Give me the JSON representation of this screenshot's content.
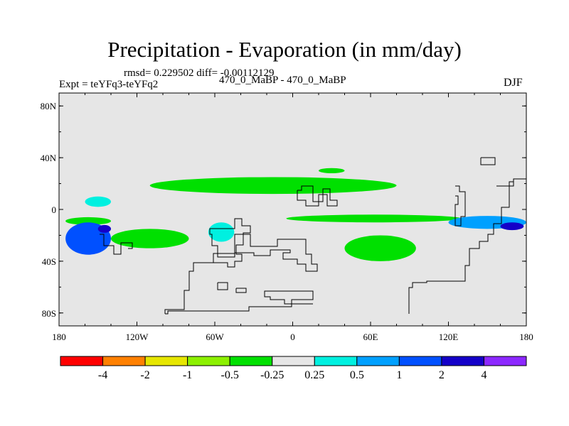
{
  "chart_data": {
    "type": "heatmap",
    "title": "Precipitation - Evaporation (in mm/day)",
    "stats_text": "rmsd= 0.229502 diff= -0.00112129",
    "left_label": "Expt = teYFq3-teYFq2",
    "center_label": "470_0_MaBP - 470_0_MaBP",
    "right_label": "DJF",
    "xlim": [
      -180,
      180
    ],
    "ylim": [
      -90,
      90
    ],
    "x_ticks": [
      {
        "value": -180,
        "label": "180"
      },
      {
        "value": -120,
        "label": "120W"
      },
      {
        "value": -60,
        "label": "60W"
      },
      {
        "value": 0,
        "label": "0"
      },
      {
        "value": 60,
        "label": "60E"
      },
      {
        "value": 120,
        "label": "120E"
      },
      {
        "value": 180,
        "label": "180"
      }
    ],
    "y_ticks": [
      {
        "value": 80,
        "label": "80N"
      },
      {
        "value": 40,
        "label": "40N"
      },
      {
        "value": 0,
        "label": "0"
      },
      {
        "value": -40,
        "label": "40S"
      },
      {
        "value": -80,
        "label": "80S"
      }
    ],
    "colorbar": {
      "colors": [
        "#ff0000",
        "#ff8000",
        "#e6e600",
        "#8cf000",
        "#00e000",
        "#e6e6e6",
        "#00f0e0",
        "#00a0ff",
        "#0050ff",
        "#1400c8",
        "#8c28ff"
      ],
      "labels": [
        "-4",
        "-2",
        "-1",
        "-0.5",
        "-0.25",
        "0.25",
        "0.5",
        "1",
        "2",
        "4"
      ]
    },
    "regions": [
      {
        "name": "itcz-south-band",
        "level": -0.25,
        "lon": [
          -5,
          130
        ],
        "lat": [
          -4,
          -10
        ]
      },
      {
        "name": "itcz-east-pacific",
        "level": -0.25,
        "lon": [
          -175,
          -140
        ],
        "lat": [
          -6,
          -12
        ]
      },
      {
        "name": "subtropic-north-band",
        "level": -0.25,
        "lon": [
          -110,
          80
        ],
        "lat": [
          12,
          25
        ]
      },
      {
        "name": "north-atlantic-patch",
        "level": -0.25,
        "lon": [
          20,
          40
        ],
        "lat": [
          28,
          32
        ]
      },
      {
        "name": "south-indian-patch",
        "level": -0.25,
        "lon": [
          40,
          95
        ],
        "lat": [
          -20,
          -40
        ]
      },
      {
        "name": "south-pacific-patch",
        "level": -0.25,
        "lon": [
          -140,
          -80
        ],
        "lat": [
          -15,
          -30
        ]
      },
      {
        "name": "south-america-moist",
        "level": 0.25,
        "lon": [
          -65,
          -45
        ],
        "lat": [
          -10,
          -25
        ]
      },
      {
        "name": "central-pacific-moist",
        "level": 0.25,
        "lon": [
          -160,
          -140
        ],
        "lat": [
          2,
          10
        ]
      },
      {
        "name": "west-pacific-moist",
        "level": 0.5,
        "lon": [
          120,
          180
        ],
        "lat": [
          -5,
          -15
        ]
      },
      {
        "name": "southwest-pacific-moist",
        "level": 1,
        "lon": [
          -175,
          -140
        ],
        "lat": [
          -10,
          -35
        ]
      },
      {
        "name": "southwest-pacific-core",
        "level": 2,
        "lon": [
          -150,
          -140
        ],
        "lat": [
          -12,
          -18
        ]
      },
      {
        "name": "west-pacific-core",
        "level": 2,
        "lon": [
          160,
          178
        ],
        "lat": [
          -10,
          -16
        ]
      }
    ]
  }
}
